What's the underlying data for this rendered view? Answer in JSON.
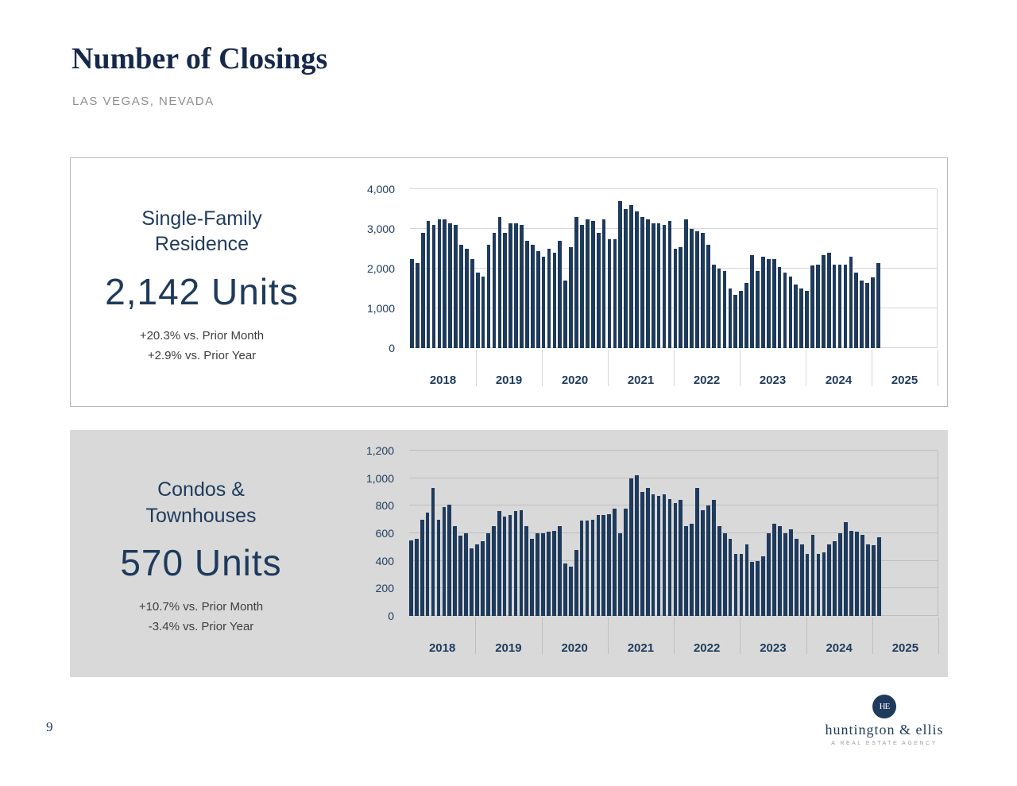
{
  "page": {
    "title": "Number of Closings",
    "subtitle": "LAS VEGAS, NEVADA",
    "page_number": "9"
  },
  "panels": [
    {
      "label_line1": "Single-Family",
      "label_line2": "Residence",
      "units": "2,142 Units",
      "stat_month": "+20.3% vs. Prior Month",
      "stat_year": "+2.9% vs. Prior Year"
    },
    {
      "label_line1": "Condos &",
      "label_line2": "Townhouses",
      "units": "570 Units",
      "stat_month": "+10.7% vs. Prior Month",
      "stat_year": "-3.4% vs. Prior Year"
    }
  ],
  "chart_data": [
    {
      "type": "bar",
      "title": "Single-Family Residence closings by month",
      "x_start": "2018-01",
      "years": [
        "2018",
        "2019",
        "2020",
        "2021",
        "2022",
        "2023",
        "2024",
        "2025"
      ],
      "months_per_year": 12,
      "values": [
        2250,
        2150,
        2900,
        3200,
        3100,
        3250,
        3250,
        3150,
        3100,
        2600,
        2500,
        2250,
        1900,
        1800,
        2600,
        2900,
        3300,
        2900,
        3150,
        3150,
        3100,
        2700,
        2600,
        2450,
        2300,
        2500,
        2400,
        2700,
        1700,
        2550,
        3300,
        3100,
        3250,
        3200,
        2900,
        3250,
        2750,
        2750,
        3700,
        3500,
        3600,
        3450,
        3300,
        3250,
        3150,
        3150,
        3100,
        3200,
        2500,
        2550,
        3250,
        3000,
        2950,
        2900,
        2600,
        2100,
        2000,
        1950,
        1500,
        1350,
        1450,
        1650,
        2350,
        1950,
        2300,
        2250,
        2250,
        2050,
        1900,
        1800,
        1600,
        1500,
        1450,
        2082,
        2100,
        2350,
        2400,
        2100,
        2100,
        2100,
        2300,
        1900,
        1700,
        1650,
        1781,
        2142
      ],
      "ylim": [
        0,
        4000
      ],
      "ytick_step": 1000,
      "ytick_labels": [
        "0",
        "1,000",
        "2,000",
        "3,000",
        "4,000"
      ],
      "bar_color": "#1e3a5c",
      "grid_color": "#d6d6d6",
      "grid": true,
      "legend": "none"
    },
    {
      "type": "bar",
      "title": "Condos & Townhouses closings by month",
      "x_start": "2018-01",
      "years": [
        "2018",
        "2019",
        "2020",
        "2021",
        "2022",
        "2023",
        "2024",
        "2025"
      ],
      "months_per_year": 12,
      "values": [
        550,
        560,
        700,
        750,
        930,
        700,
        790,
        810,
        650,
        580,
        600,
        490,
        520,
        540,
        600,
        650,
        760,
        720,
        730,
        760,
        770,
        650,
        560,
        600,
        600,
        610,
        620,
        650,
        380,
        360,
        480,
        690,
        690,
        700,
        730,
        730,
        740,
        780,
        600,
        780,
        1000,
        1020,
        900,
        930,
        880,
        870,
        880,
        850,
        820,
        840,
        650,
        670,
        930,
        770,
        800,
        840,
        650,
        600,
        560,
        450,
        450,
        520,
        390,
        400,
        430,
        600,
        670,
        650,
        600,
        630,
        560,
        520,
        450,
        590,
        450,
        460,
        520,
        540,
        600,
        680,
        620,
        610,
        590,
        520,
        515,
        570
      ],
      "ylim": [
        0,
        1200
      ],
      "ytick_step": 200,
      "ytick_labels": [
        "0",
        "200",
        "400",
        "600",
        "800",
        "1,000",
        "1,200"
      ],
      "bar_color": "#1e3a5c",
      "grid_color": "#bfbfbf",
      "grid": true,
      "legend": "none"
    }
  ],
  "footer": {
    "logo_monogram": "HE",
    "logo_name": "huntington & ellis",
    "logo_tagline": "A REAL ESTATE AGENCY"
  }
}
